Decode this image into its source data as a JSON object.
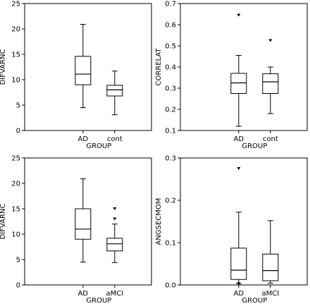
{
  "chart_data": [
    {
      "type": "box",
      "xlabel": "GROUP",
      "ylabel": "DIFVARNC",
      "ylim": [
        0,
        25
      ],
      "yticks": [
        0,
        5,
        10,
        15,
        20,
        25
      ],
      "ytick_labels": [
        "0",
        "5",
        "10",
        "15",
        "20",
        "25"
      ],
      "categories": [
        "AD",
        "cont"
      ],
      "boxes": [
        {
          "category": "AD",
          "whisker_low": 4.5,
          "q1": 9.0,
          "median": 11.1,
          "q3": 14.6,
          "whisker_high": 20.9,
          "outliers": []
        },
        {
          "category": "cont",
          "whisker_low": 3.1,
          "q1": 6.8,
          "median": 8.0,
          "q3": 8.9,
          "whisker_high": 11.7,
          "outliers": []
        }
      ]
    },
    {
      "type": "box",
      "xlabel": "GROUP",
      "ylabel": "CORRELAT",
      "ylim": [
        0.1,
        0.7
      ],
      "yticks": [
        0.1,
        0.2,
        0.3,
        0.4,
        0.5,
        0.6,
        0.7
      ],
      "ytick_labels": [
        "0.1",
        "0.2",
        "0.3",
        "0.4",
        "0.5",
        "0.6",
        "0.7"
      ],
      "categories": [
        "AD",
        "cont"
      ],
      "boxes": [
        {
          "category": "AD",
          "whisker_low": 0.12,
          "q1": 0.275,
          "median": 0.325,
          "q3": 0.37,
          "whisker_high": 0.455,
          "outliers": [
            0.645
          ]
        },
        {
          "category": "cont",
          "whisker_low": 0.18,
          "q1": 0.275,
          "median": 0.33,
          "q3": 0.368,
          "whisker_high": 0.4,
          "outliers": [
            0.525
          ]
        }
      ]
    },
    {
      "type": "box",
      "xlabel": "GROUP",
      "ylabel": "DIFVARNC",
      "ylim": [
        0,
        25
      ],
      "yticks": [
        0,
        5,
        10,
        15,
        20,
        25
      ],
      "ytick_labels": [
        "0",
        "5",
        "10",
        "15",
        "20",
        "25"
      ],
      "categories": [
        "AD",
        "aMCI"
      ],
      "boxes": [
        {
          "category": "AD",
          "whisker_low": 4.5,
          "q1": 9.0,
          "median": 11.0,
          "q3": 15.0,
          "whisker_high": 20.9,
          "outliers": []
        },
        {
          "category": "aMCI",
          "whisker_low": 4.4,
          "q1": 6.7,
          "median": 8.1,
          "q3": 9.2,
          "whisker_high": 12.0,
          "outliers": [
            13.0,
            15.0
          ]
        }
      ]
    },
    {
      "type": "box",
      "xlabel": "GROUP",
      "ylabel": "ANGSECMOM",
      "ylim": [
        0.0,
        0.3
      ],
      "yticks": [
        0.0,
        0.1,
        0.2,
        0.3
      ],
      "ytick_labels": [
        "0.0",
        "0.1",
        "0.2",
        "0.3"
      ],
      "categories": [
        "AD",
        "aMCI"
      ],
      "boxes": [
        {
          "category": "AD",
          "whisker_low": 0.003,
          "q1": 0.013,
          "median": 0.035,
          "q3": 0.087,
          "whisker_high": 0.172,
          "outliers": [
            0.275,
            0.003
          ]
        },
        {
          "category": "aMCI",
          "whisker_low": 0.004,
          "q1": 0.01,
          "median": 0.034,
          "q3": 0.073,
          "whisker_high": 0.152,
          "outliers": []
        }
      ]
    }
  ]
}
